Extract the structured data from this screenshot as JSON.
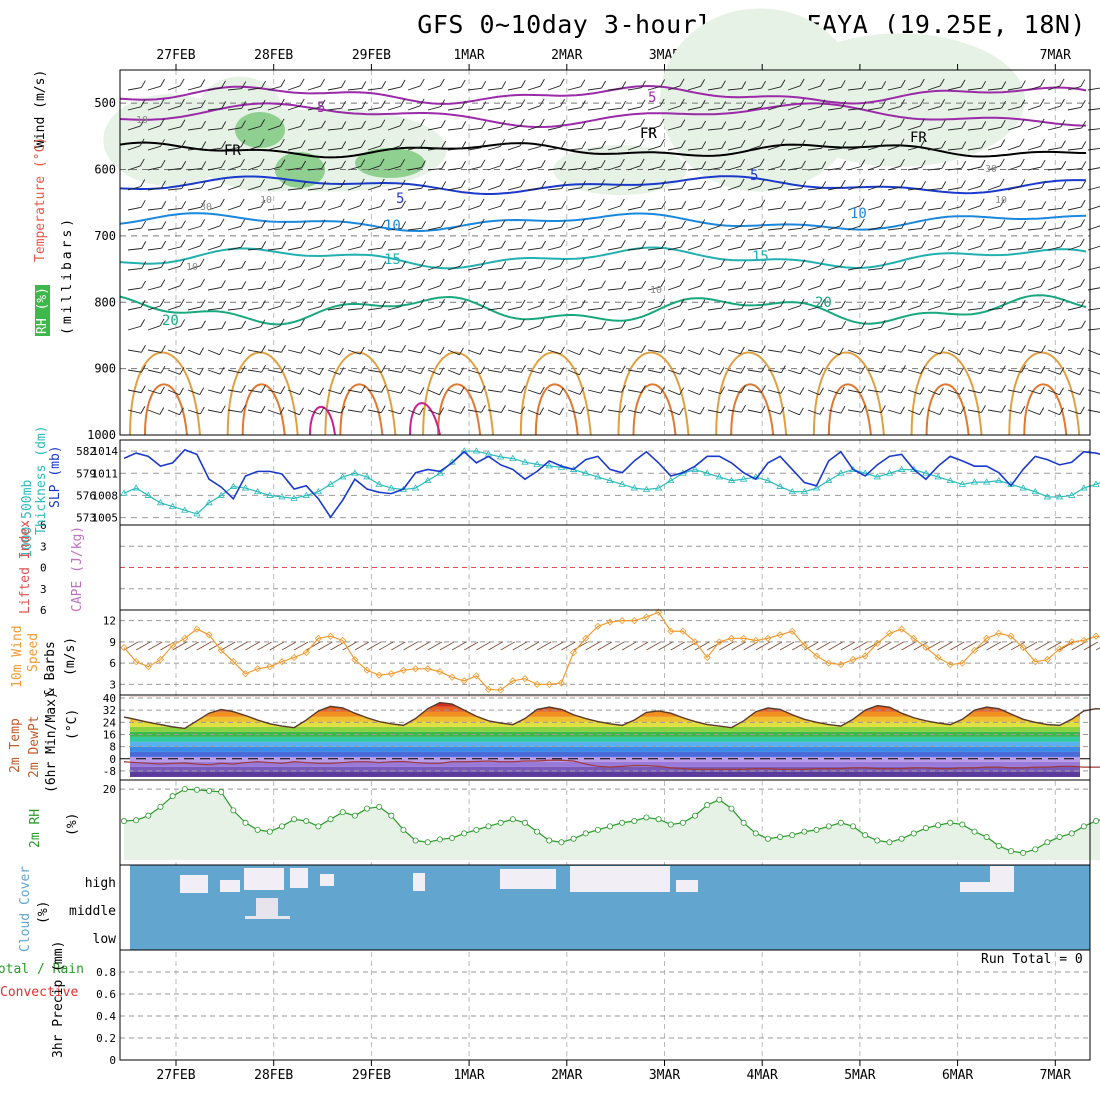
{
  "title": "GFS 0~10day 3-hourly for FAYA (19.25E, 18N)",
  "dates": [
    "27FEB",
    "28FEB",
    "29FEB",
    "1MAR",
    "2MAR",
    "3MAR",
    "4MAR",
    "5MAR",
    "6MAR",
    "7MAR"
  ],
  "panel_labels": {
    "upper_wind": "Wind (m/s)",
    "upper_temp": "Temperature (°C)",
    "upper_rh": "RH (%)",
    "upper_mb": "(millibars)",
    "slp": "SLP (mb)",
    "thick1": "1000-500mb",
    "thick2": "Thickness (dm)",
    "li": "Lifted Index",
    "cape": "CAPE (J/kg)",
    "w10": "10m Wind",
    "wspeed": "Speed",
    "wbarbs": "& Barbs",
    "wunit": "(m/s)",
    "temp1": "2m Temp",
    "temp2": "2m DewPt",
    "temp3": "(6hr Min/Max)",
    "tunit": "(°C)",
    "rh2m": "2m RH",
    "rhunit": "(%)",
    "cloud": "Cloud Cover",
    "cloudunit": "(%)",
    "precip_total": "Total / Rain",
    "precip_conv": "Convective",
    "precip_label": "3hr Precip (mm)",
    "run_total": "Run Total = 0"
  },
  "colors": {
    "temp": "#e8574a",
    "wind": "#8a3aa8",
    "slp": "#1a3acc",
    "thickness": "#2bbcbc",
    "li": "#e05050",
    "cape": "#c070c0",
    "w10": "#f29b30",
    "rh": "#2a9a2a",
    "cloud": "#62a6d0",
    "precip_total": "#2a9a2a",
    "precip_conv": "#e03030"
  },
  "chart_data": [
    {
      "type": "contour",
      "name": "upper",
      "ylabel": "(millibars)",
      "yticks": [
        500,
        600,
        700,
        800,
        900,
        1000
      ],
      "ylim": [
        1000,
        450
      ],
      "contour_labels": [
        "5",
        "5",
        "FR",
        "FR",
        "FR",
        "FR",
        "5",
        "5",
        "10",
        "10",
        "15",
        "15",
        "20",
        "20",
        "10",
        "10",
        "10",
        "30",
        "10",
        "30",
        "10"
      ]
    },
    {
      "type": "line",
      "name": "slp_thickness",
      "ylabel": "SLP (mb)",
      "yticks_left": [
        573,
        576,
        579,
        582
      ],
      "yticks_right": [
        1005,
        1008,
        1011,
        1014
      ],
      "series": [
        {
          "name": "SLP (mb)",
          "axis": "right",
          "values": [
            1013.2,
            1014.0,
            1013.5,
            1012.0,
            1012.5,
            1014.5,
            1013.8,
            1010.0,
            1008.8,
            1007.0,
            1010.5,
            1011.2,
            1011.2,
            1010.8,
            1008.5,
            1009.0,
            1007.0,
            1004.2,
            1006.8,
            1010.0,
            1008.5,
            1008.0,
            1007.8,
            1008.5,
            1011.0,
            1011.5,
            1011.2,
            1012.5,
            1014.2,
            1012.5,
            1013.5,
            1012.2,
            1011.5,
            1010.0,
            1011.2,
            1012.8,
            1012.0,
            1011.5,
            1013.0,
            1013.5,
            1011.5,
            1011.0,
            1012.8,
            1014.2,
            1012.5,
            1010.5,
            1011.0,
            1012.0,
            1013.5,
            1013.5,
            1012.5,
            1011.0,
            1010.0,
            1012.5,
            1013.5,
            1011.5,
            1009.5,
            1009.0,
            1012.8,
            1014.2,
            1011.5,
            1010.5,
            1012.2,
            1013.5,
            1013.8,
            1011.5,
            1010.0,
            1012.0,
            1013.5,
            1012.8,
            1012.0,
            1012.0,
            1011.0,
            1009.0,
            1011.5,
            1013.5,
            1013.0,
            1012.2,
            1012.6,
            1014.2,
            1014.0,
            1013.5,
            1012.0,
            1012.5,
            1014.5
          ]
        },
        {
          "name": "1000-500mb Thickness (dm)",
          "axis": "left",
          "values": [
            576.3,
            577.0,
            576.0,
            575.0,
            574.5,
            574.0,
            573.5,
            575.0,
            576.0,
            577.2,
            577.0,
            576.5,
            576.0,
            575.8,
            575.6,
            576.0,
            576.5,
            577.5,
            578.5,
            579.0,
            578.5,
            577.5,
            577.0,
            576.8,
            577.0,
            578.0,
            579.0,
            580.5,
            582.0,
            582.0,
            581.6,
            581.2,
            581.0,
            580.5,
            580.2,
            580.0,
            579.8,
            579.5,
            579.0,
            578.5,
            578.0,
            577.5,
            577.0,
            576.8,
            577.0,
            578.0,
            579.0,
            579.5,
            579.0,
            578.5,
            578.0,
            578.2,
            578.5,
            578.0,
            577.2,
            576.5,
            576.5,
            577.0,
            578.0,
            579.0,
            579.5,
            579.0,
            578.5,
            579.0,
            579.5,
            579.5,
            579.0,
            578.5,
            578.0,
            577.5,
            577.8,
            577.8,
            578.0,
            577.5,
            577.0,
            576.5,
            575.8,
            575.8,
            576.0,
            577.0,
            577.5,
            578.2,
            577.6,
            577.0,
            576.5,
            576.2,
            576.0,
            576.0,
            576.0
          ]
        }
      ]
    },
    {
      "type": "line",
      "name": "li_cape",
      "ylabel": "Lifted Index",
      "yticks": [
        -6,
        -3,
        0,
        3,
        6
      ],
      "ytick_labels": [
        "6",
        "3",
        "0",
        "3",
        "6"
      ],
      "ylim": [
        6,
        -6
      ],
      "series": [
        {
          "name": "Lifted Index",
          "values": []
        }
      ]
    },
    {
      "type": "line",
      "name": "wind10m",
      "ylabel": "(m/s)",
      "yticks": [
        3,
        6,
        9,
        12
      ],
      "ylim": [
        1.5,
        13.5
      ],
      "series": [
        {
          "name": "10m Wind Speed",
          "values": [
            8.2,
            6.2,
            5.5,
            6.5,
            8.5,
            9.5,
            10.8,
            10.0,
            7.8,
            6.2,
            4.5,
            5.2,
            5.5,
            6.2,
            6.8,
            7.5,
            9.5,
            9.8,
            9.2,
            6.5,
            5.0,
            4.3,
            4.5,
            5.0,
            5.2,
            5.2,
            4.8,
            4.0,
            3.5,
            4.2,
            2.3,
            2.2,
            3.5,
            3.8,
            3.0,
            3.0,
            3.2,
            7.5,
            9.5,
            11.2,
            11.8,
            12.0,
            12.0,
            12.5,
            13.2,
            10.5,
            10.5,
            9.0,
            6.8,
            9.0,
            9.5,
            9.5,
            9.2,
            9.5,
            10.0,
            10.5,
            8.5,
            7.0,
            6.0,
            5.8,
            6.5,
            7.0,
            8.8,
            10.2,
            10.8,
            9.5,
            8.2,
            6.8,
            5.8,
            6.0,
            7.8,
            9.5,
            10.2,
            9.8,
            8.2,
            6.2,
            6.5,
            8.0,
            9.0,
            9.2,
            9.8,
            9.5,
            8.5,
            6.5,
            5.2,
            5.5,
            6.5,
            6.5,
            6.5
          ]
        }
      ]
    },
    {
      "type": "area",
      "name": "temp2m",
      "ylabel": "(°C)",
      "yticks": [
        -8,
        0,
        8,
        16,
        24,
        32,
        40
      ],
      "ylim": [
        -14,
        42
      ],
      "series": [
        {
          "name": "2m Temp",
          "values": [
            27.5,
            25.8,
            24.0,
            22.5,
            21.0,
            20.0,
            25.0,
            30.0,
            32.5,
            31.0,
            28.5,
            25.5,
            23.0,
            21.5,
            20.5,
            25.5,
            31.5,
            34.5,
            33.5,
            30.0,
            27.0,
            24.5,
            23.0,
            22.0,
            26.5,
            33.0,
            37.0,
            36.0,
            32.0,
            28.0,
            25.0,
            23.5,
            22.5,
            26.5,
            32.5,
            34.0,
            32.5,
            29.0,
            26.5,
            24.5,
            23.0,
            22.0,
            25.5,
            30.5,
            31.5,
            30.0,
            27.0,
            24.5,
            22.5,
            21.5,
            20.5,
            25.0,
            31.0,
            33.5,
            32.5,
            29.0,
            26.0,
            24.0,
            22.5,
            21.5,
            26.0,
            32.0,
            35.0,
            34.0,
            30.0,
            27.0,
            25.0,
            23.5,
            22.5,
            26.0,
            32.0,
            34.0,
            33.0,
            29.5,
            26.0,
            24.0,
            22.5,
            22.0,
            26.0,
            31.5,
            33.0,
            32.5,
            29.5,
            26.5,
            24.5,
            23.0,
            21.5,
            21.0,
            21.0
          ]
        },
        {
          "name": "2m DewPt",
          "values": [
            -2.0,
            -2.5,
            -3.0,
            -3.5,
            -3.0,
            -2.8,
            -3.5,
            -4.0,
            -3.0,
            -3.5,
            -2.5,
            -2.0,
            -2.5,
            -3.0,
            -2.0,
            -2.5,
            -3.0,
            -3.0,
            -2.5,
            -2.0,
            -2.0,
            -2.5,
            -2.0,
            -1.8,
            -2.5,
            -3.0,
            -3.0,
            -2.0,
            -2.0,
            -1.8,
            -1.5,
            -2.0,
            -2.0,
            -1.5,
            -1.5,
            -1.0,
            -1.0,
            -1.5,
            -3.5,
            -5.0,
            -5.5,
            -5.0,
            -4.5,
            -4.5,
            -5.0,
            -6.0,
            -6.5,
            -7.0,
            -7.0,
            -7.0,
            -7.0,
            -7.0,
            -6.5,
            -6.5,
            -7.0,
            -7.0,
            -7.0,
            -6.5,
            -6.5,
            -6.5,
            -6.0,
            -6.0,
            -6.5,
            -6.5,
            -6.5,
            -6.0,
            -6.0,
            -6.5,
            -6.5,
            -6.0,
            -6.0,
            -5.5,
            -5.5,
            -6.0,
            -6.0,
            -5.5,
            -5.5,
            -5.0,
            -5.0,
            -5.5,
            -5.5,
            -5.5,
            -5.5,
            -5.5,
            -5.5,
            -5.5,
            -5.5,
            -5.0,
            -5.0
          ]
        }
      ]
    },
    {
      "type": "area",
      "name": "rh2m",
      "ylabel": "(%)",
      "yticks": [
        20
      ],
      "ylim": [
        0,
        22
      ],
      "series": [
        {
          "name": "2m RH",
          "values": [
            11.0,
            11.2,
            12.5,
            15.0,
            18.0,
            20.0,
            19.8,
            19.5,
            19.2,
            14.0,
            10.5,
            8.5,
            8.0,
            9.5,
            11.5,
            11.0,
            9.5,
            11.5,
            13.5,
            12.5,
            14.5,
            15.0,
            12.5,
            8.5,
            5.5,
            5.0,
            5.8,
            6.2,
            7.5,
            8.5,
            9.5,
            10.5,
            11.5,
            10.5,
            8.0,
            5.5,
            5.0,
            6.0,
            7.5,
            8.5,
            9.5,
            10.5,
            11.0,
            12.0,
            11.5,
            10.0,
            10.5,
            12.5,
            15.5,
            17.0,
            14.5,
            10.5,
            7.5,
            6.0,
            6.5,
            7.0,
            8.0,
            8.5,
            9.5,
            10.5,
            9.5,
            7.0,
            5.5,
            5.0,
            6.0,
            7.5,
            9.0,
            9.8,
            10.5,
            10.0,
            8.0,
            6.5,
            4.0,
            2.5,
            2.0,
            3.0,
            5.0,
            6.5,
            7.5,
            9.5,
            11.0,
            12.0,
            11.5,
            8.5,
            5.5,
            3.5,
            2.5,
            3.0,
            4.5
          ]
        }
      ]
    },
    {
      "type": "bar",
      "name": "cloud",
      "categories": [
        "high",
        "middle",
        "low"
      ],
      "ylabel": "(%)",
      "series": []
    },
    {
      "type": "bar",
      "name": "precip",
      "ylabel": "3hr Precip (mm)",
      "yticks": [
        0,
        0.2,
        0.4,
        0.6,
        0.8
      ],
      "ylim": [
        0,
        1.0
      ],
      "series": [
        {
          "name": "Total / Rain",
          "values": []
        },
        {
          "name": "Convective",
          "values": []
        }
      ]
    }
  ]
}
